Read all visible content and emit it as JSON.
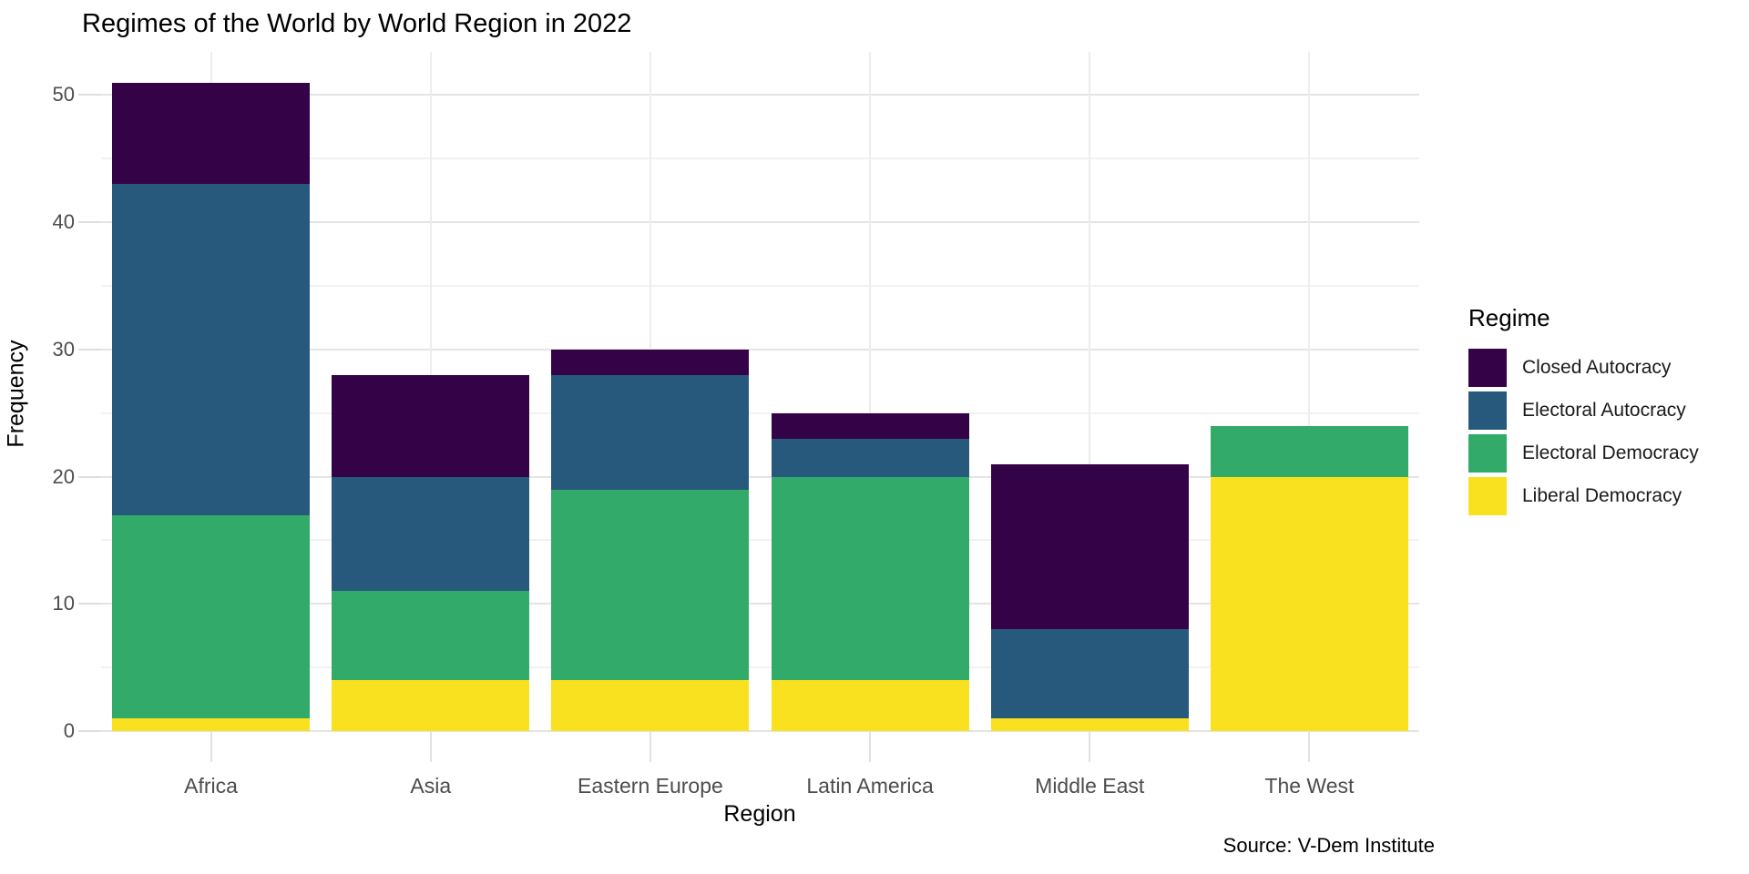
{
  "chart_data": {
    "type": "bar",
    "subtype": "stacked",
    "title": "Regimes of the World by World Region in 2022",
    "xlabel": "Region",
    "ylabel": "Frequency",
    "source": "Source: V-Dem Institute",
    "legend_title": "Regime",
    "legend_position": "right",
    "grid": true,
    "categories": [
      "Africa",
      "Asia",
      "Eastern Europe",
      "Latin America",
      "Middle East",
      "The West"
    ],
    "series": [
      {
        "name": "Closed Autocracy",
        "color": "#340347",
        "values": [
          8,
          8,
          2,
          2,
          13,
          0
        ]
      },
      {
        "name": "Electoral Autocracy",
        "color": "#27597d",
        "values": [
          26,
          9,
          9,
          3,
          7,
          0
        ]
      },
      {
        "name": "Electoral Democracy",
        "color": "#32aa69",
        "values": [
          16,
          7,
          15,
          16,
          0,
          4
        ]
      },
      {
        "name": "Liberal Democracy",
        "color": "#f9e120",
        "values": [
          1,
          4,
          4,
          4,
          1,
          20
        ]
      }
    ],
    "totals": [
      51,
      28,
      30,
      25,
      21,
      24
    ],
    "y_major_ticks": [
      0,
      10,
      20,
      30,
      40,
      50
    ],
    "y_minor_ticks": [
      5,
      15,
      25,
      35,
      45
    ],
    "ylim": [
      0,
      53.4
    ],
    "colors": {
      "grid_major": "#e4e4e4",
      "grid_minor": "#f1f1f1",
      "grid_vertical": "#ededed",
      "axis_text": "#4d4d4d"
    }
  }
}
